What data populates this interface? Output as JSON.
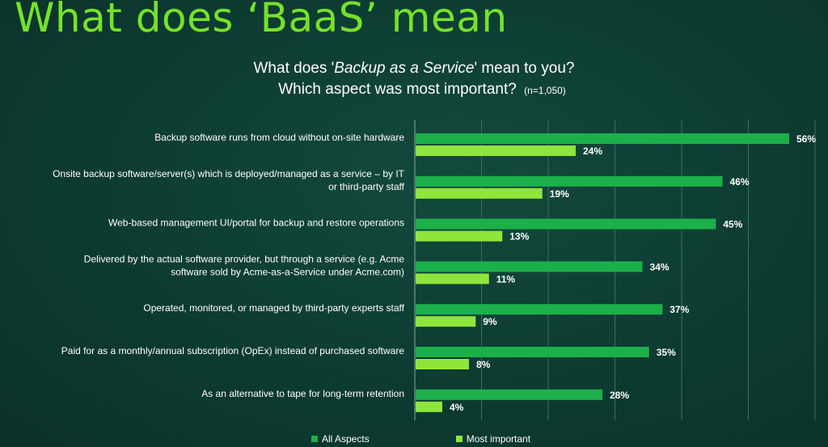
{
  "slide_title": "What does ‘BaaS’ mean",
  "chart_title": {
    "before": "What does '",
    "emph": "Backup as a Service",
    "after": "' mean to you?",
    "line2": "Which aspect was most important?",
    "note": "(n=1,050)"
  },
  "colors": {
    "all_aspects": "#1cb04a",
    "most_important": "#8ee63b",
    "background": "#0d3b31",
    "title": "#76e22a"
  },
  "chart_data": {
    "type": "bar",
    "orientation": "horizontal",
    "categories": [
      [
        "Backup software runs from cloud without on-site hardware"
      ],
      [
        "Onsite backup software/server(s) which is deployed/managed as a service – by IT",
        "or third-party staff"
      ],
      [
        "Web-based management UI/portal for backup and restore operations"
      ],
      [
        "Delivered by the actual software provider, but through a service (e.g. Acme",
        "software sold by Acme-as-a-Service under Acme.com)"
      ],
      [
        "Operated, monitored, or managed by third-party experts staff"
      ],
      [
        "Paid for as a monthly/annual subscription (OpEx) instead of purchased software"
      ],
      [
        "As an alternative to tape for long-term retention"
      ]
    ],
    "series": [
      {
        "name": "All Aspects",
        "values": [
          56,
          46,
          45,
          34,
          37,
          35,
          28
        ],
        "labels": [
          "56%",
          "46%",
          "45%",
          "34%",
          "37%",
          "35%",
          "28%"
        ]
      },
      {
        "name": "Most important",
        "values": [
          24,
          19,
          13,
          11,
          9,
          8,
          4
        ],
        "labels": [
          "24%",
          "19%",
          "13%",
          "11%",
          "9%",
          "8%",
          "4%"
        ]
      }
    ],
    "xlim": [
      0,
      60
    ],
    "grid": true,
    "legend": "bottom"
  }
}
